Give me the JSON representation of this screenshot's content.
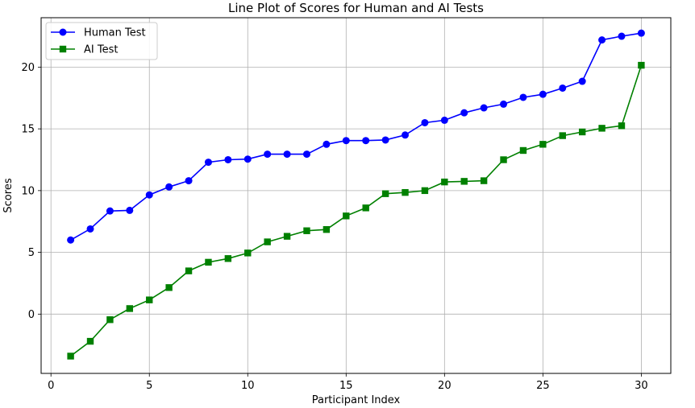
{
  "chart_data": {
    "type": "line",
    "title": "Line Plot of Scores for Human and AI Tests",
    "xlabel": "Participant Index",
    "ylabel": "Scores",
    "xlim": [
      -0.5,
      31.5
    ],
    "ylim": [
      -4.8,
      24.0
    ],
    "xticks": [
      0,
      5,
      10,
      15,
      20,
      25,
      30
    ],
    "yticks": [
      0,
      5,
      10,
      15,
      20
    ],
    "grid": true,
    "legend_position": "top-left",
    "x": [
      1,
      2,
      3,
      4,
      5,
      6,
      7,
      8,
      9,
      10,
      11,
      12,
      13,
      14,
      15,
      16,
      17,
      18,
      19,
      20,
      21,
      22,
      23,
      24,
      25,
      26,
      27,
      28,
      29,
      30
    ],
    "series": [
      {
        "name": "Human Test",
        "color": "#0000ff",
        "marker": "circle",
        "values": [
          6.0,
          6.9,
          8.35,
          8.4,
          9.65,
          10.3,
          10.8,
          12.3,
          12.5,
          12.55,
          12.95,
          12.95,
          12.95,
          13.75,
          14.05,
          14.05,
          14.1,
          14.5,
          15.5,
          15.7,
          16.3,
          16.7,
          17.0,
          17.55,
          17.8,
          18.3,
          18.85,
          22.2,
          22.5,
          22.75
        ]
      },
      {
        "name": "AI Test",
        "color": "#008000",
        "marker": "square",
        "values": [
          -3.4,
          -2.2,
          -0.45,
          0.45,
          1.15,
          2.15,
          3.5,
          4.2,
          4.5,
          4.95,
          5.85,
          6.3,
          6.75,
          6.85,
          7.95,
          8.6,
          9.75,
          9.85,
          10.0,
          10.7,
          10.75,
          10.8,
          12.5,
          13.25,
          13.75,
          14.45,
          14.75,
          15.05,
          15.25,
          20.15
        ]
      }
    ]
  }
}
